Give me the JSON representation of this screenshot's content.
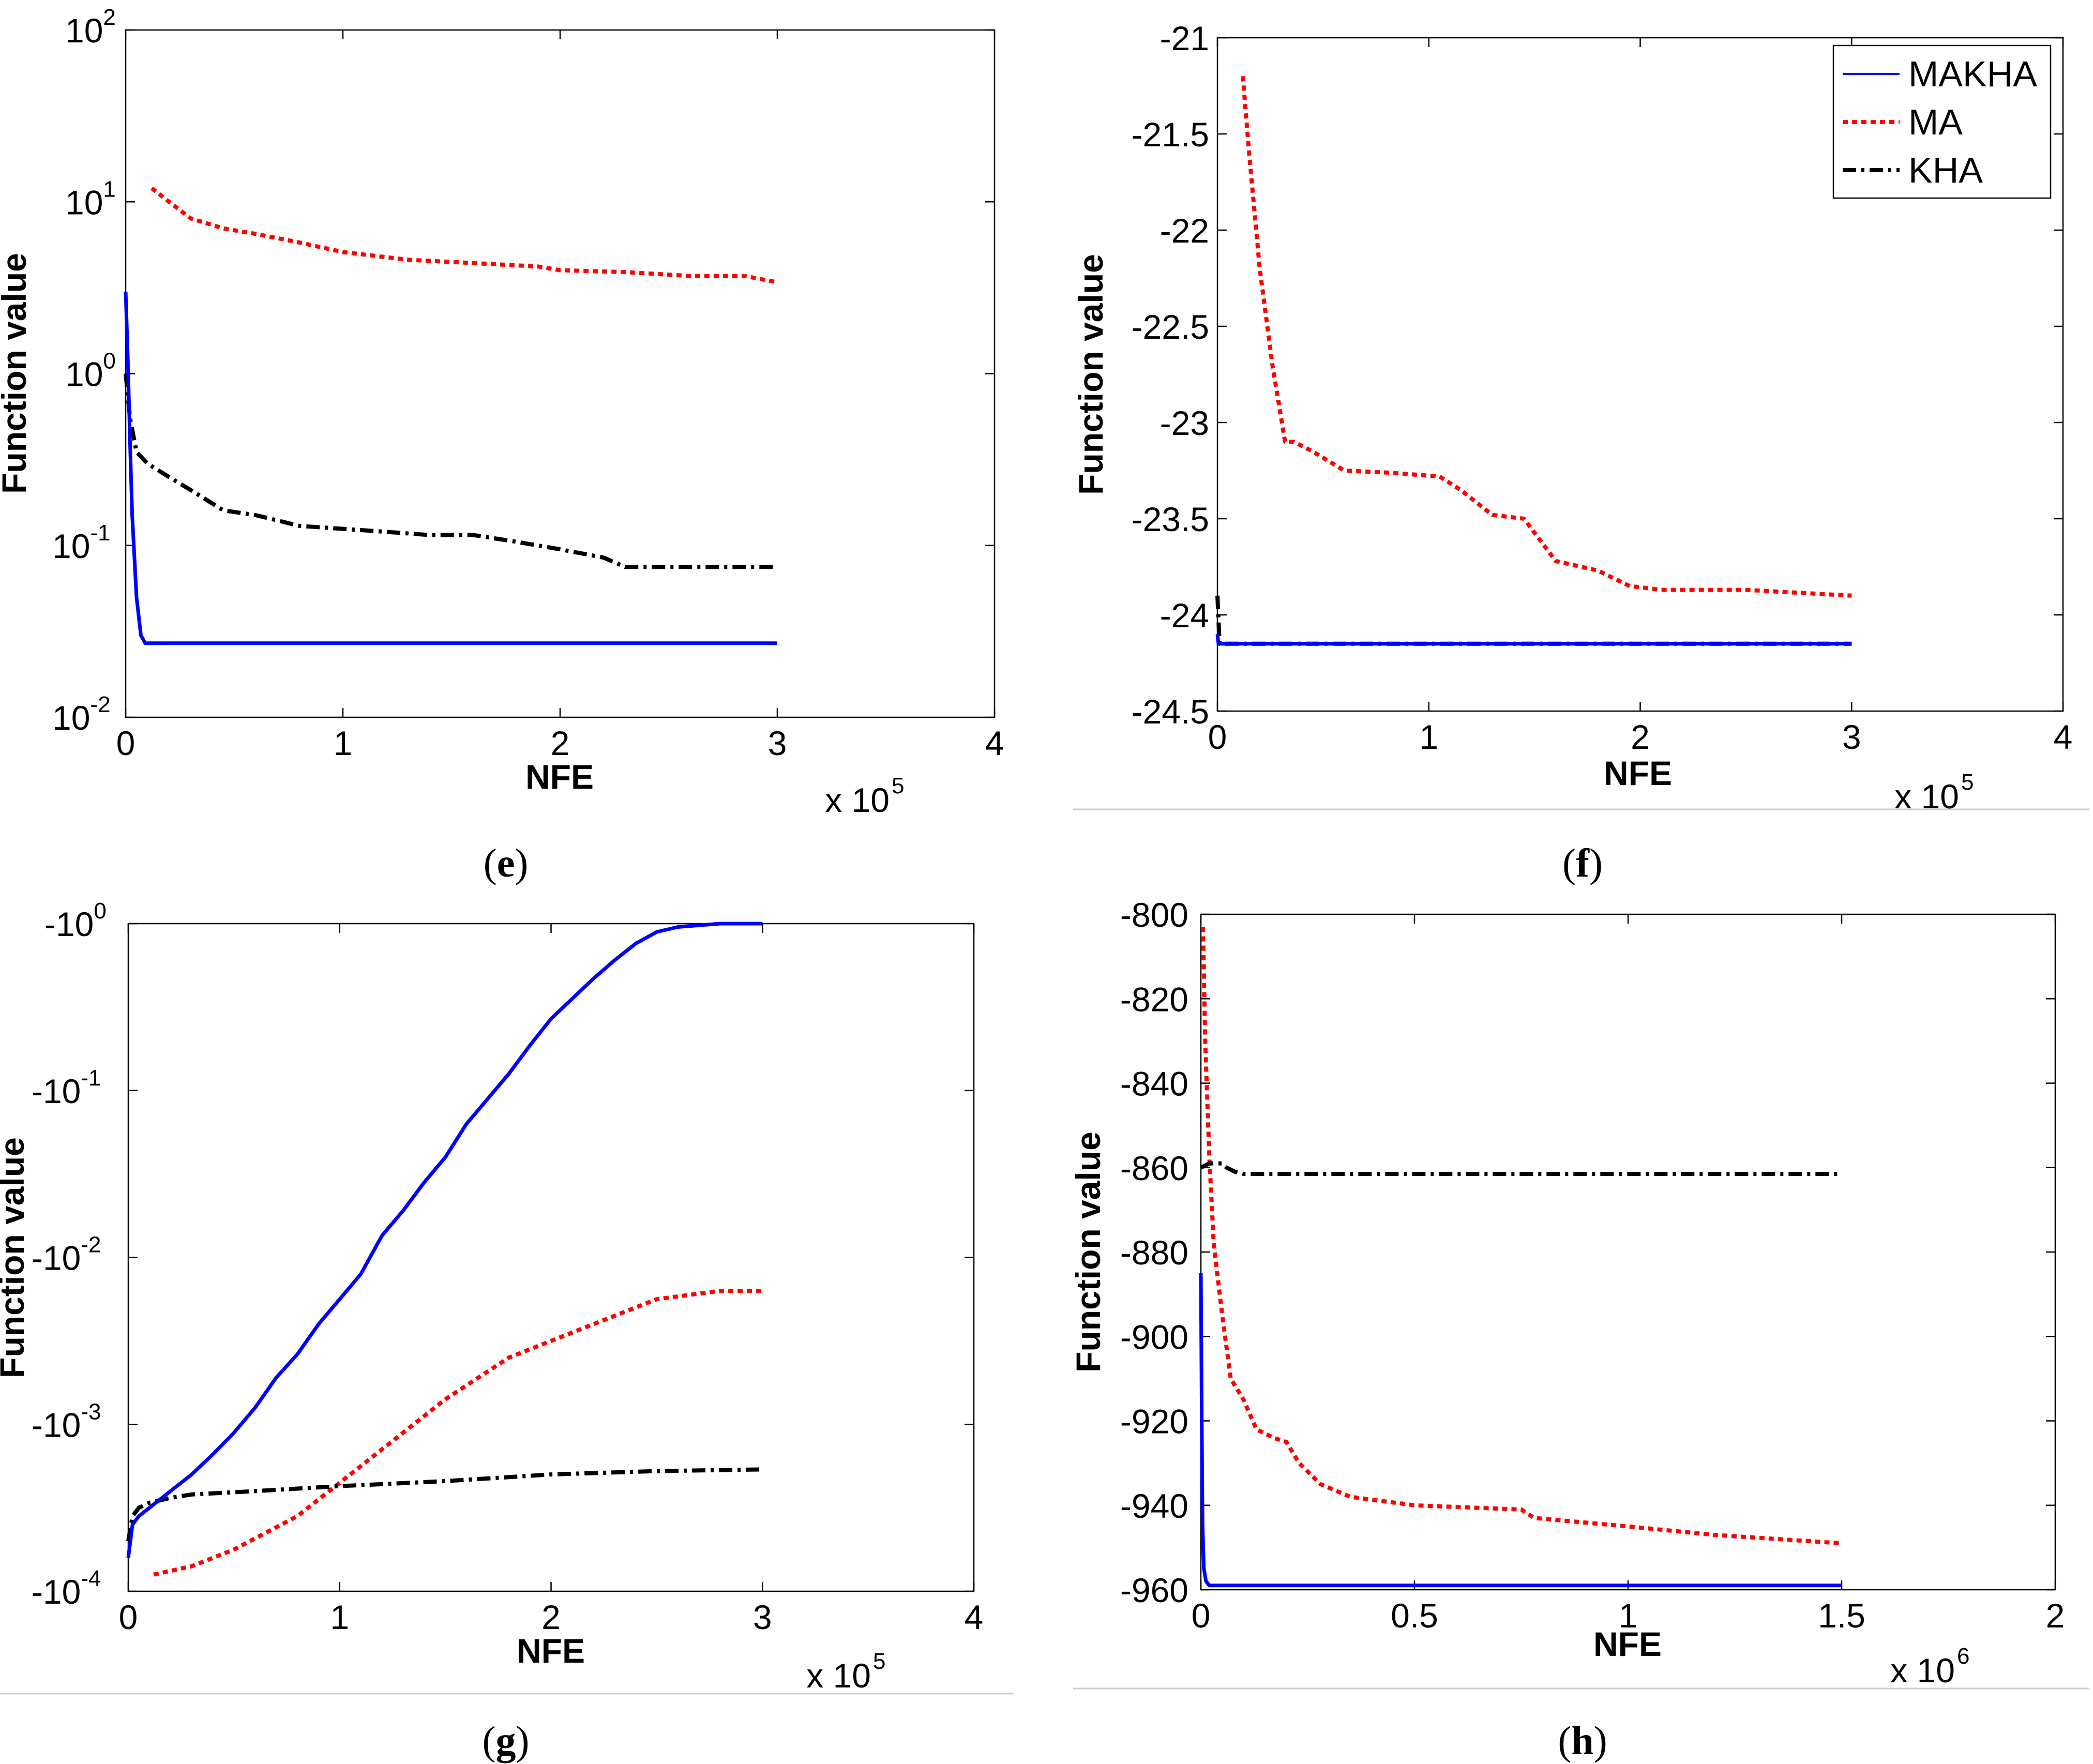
{
  "figure": {
    "series_styles": {
      "MAKHA": {
        "color": "#0000ff",
        "dash": "solid"
      },
      "MA": {
        "color": "#ff0000",
        "dash": "dotted"
      },
      "KHA": {
        "color": "#000000",
        "dash": "dash-dot"
      }
    }
  },
  "chart_data": [
    {
      "panel": "e",
      "panel_label": "(e)",
      "type": "line",
      "xlabel": "NFE",
      "ylabel": "Function value",
      "x_multiplier_text": "x 10",
      "x_multiplier_exp": "5",
      "x_scale": "linear",
      "y_scale": "log",
      "xlim": [
        0,
        4
      ],
      "ylim": [
        0.01,
        100
      ],
      "xticks": [
        0,
        1,
        2,
        3,
        4
      ],
      "xtick_labels": [
        "0",
        "1",
        "2",
        "3",
        "4"
      ],
      "yticks": [
        0.01,
        0.1,
        1,
        10,
        100
      ],
      "ytick_labels": [
        {
          "base": "10",
          "exp": "-2"
        },
        {
          "base": "10",
          "exp": "-1"
        },
        {
          "base": "10",
          "exp": "0"
        },
        {
          "base": "10",
          "exp": "1"
        },
        {
          "base": "10",
          "exp": "2"
        }
      ],
      "legend": [],
      "series": [
        {
          "name": "MA",
          "x": [
            0.12,
            0.2,
            0.3,
            0.45,
            0.6,
            0.8,
            1.0,
            1.3,
            1.6,
            1.9,
            2.0,
            2.3,
            2.6,
            2.85,
            3.0
          ],
          "y": [
            12,
            10,
            8,
            7,
            6.5,
            5.8,
            5.1,
            4.6,
            4.4,
            4.2,
            4.0,
            3.9,
            3.7,
            3.7,
            3.4
          ]
        },
        {
          "name": "KHA",
          "x": [
            0.0,
            0.02,
            0.05,
            0.1,
            0.2,
            0.3,
            0.45,
            0.6,
            0.8,
            1.0,
            1.2,
            1.4,
            1.6,
            1.8,
            2.0,
            2.2,
            2.3,
            2.6,
            3.0
          ],
          "y": [
            1.0,
            0.55,
            0.35,
            0.3,
            0.25,
            0.21,
            0.16,
            0.15,
            0.13,
            0.125,
            0.12,
            0.115,
            0.115,
            0.105,
            0.095,
            0.085,
            0.075,
            0.075,
            0.075
          ]
        },
        {
          "name": "MAKHA",
          "x": [
            0.0,
            0.01,
            0.02,
            0.03,
            0.05,
            0.07,
            0.09,
            0.12,
            0.5,
            1.0,
            2.0,
            3.0
          ],
          "y": [
            3.0,
            1.2,
            0.4,
            0.15,
            0.05,
            0.03,
            0.027,
            0.027,
            0.027,
            0.027,
            0.027,
            0.027
          ]
        }
      ]
    },
    {
      "panel": "f",
      "panel_label": "(f)",
      "type": "line",
      "xlabel": "NFE",
      "ylabel": "Function value",
      "x_multiplier_text": "x 10",
      "x_multiplier_exp": "5",
      "x_scale": "linear",
      "y_scale": "linear",
      "xlim": [
        0,
        4
      ],
      "ylim": [
        -24.5,
        -21
      ],
      "xticks": [
        0,
        1,
        2,
        3,
        4
      ],
      "xtick_labels": [
        "0",
        "1",
        "2",
        "3",
        "4"
      ],
      "yticks": [
        -24.5,
        -24,
        -23.5,
        -23,
        -22.5,
        -22,
        -21.5,
        -21
      ],
      "ytick_labels": [
        "-24.5",
        "-24",
        "-23.5",
        "-23",
        "-22.5",
        "-22",
        "-21.5",
        "-21"
      ],
      "legend": [
        "MAKHA",
        "MA",
        "KHA"
      ],
      "legend_position": "top-right",
      "series": [
        {
          "name": "MA",
          "x": [
            0.12,
            0.15,
            0.2,
            0.26,
            0.32,
            0.36,
            0.45,
            0.6,
            0.8,
            1.05,
            1.15,
            1.3,
            1.45,
            1.6,
            1.8,
            1.95,
            2.1,
            2.5,
            3.0
          ],
          "y": [
            -21.2,
            -21.6,
            -22.2,
            -22.7,
            -23.1,
            -23.1,
            -23.15,
            -23.25,
            -23.26,
            -23.28,
            -23.35,
            -23.48,
            -23.5,
            -23.72,
            -23.77,
            -23.85,
            -23.87,
            -23.87,
            -23.9
          ]
        },
        {
          "name": "KHA",
          "x": [
            0.0,
            0.01,
            3.0
          ],
          "y": [
            -23.9,
            -24.15,
            -24.15
          ]
        },
        {
          "name": "MAKHA",
          "x": [
            0.0,
            0.005,
            3.0
          ],
          "y": [
            -24.1,
            -24.15,
            -24.15
          ]
        }
      ]
    },
    {
      "panel": "g",
      "panel_label": "(g)",
      "type": "line",
      "xlabel": "NFE",
      "ylabel": "Function value",
      "x_multiplier_text": "x 10",
      "x_multiplier_exp": "5",
      "x_scale": "linear",
      "y_scale": "neg-log",
      "xlim": [
        0,
        4
      ],
      "ylim": [
        -4,
        0
      ],
      "xticks": [
        0,
        1,
        2,
        3,
        4
      ],
      "xtick_labels": [
        "0",
        "1",
        "2",
        "3",
        "4"
      ],
      "yticks": [
        -4,
        -3,
        -2,
        -1,
        0
      ],
      "ytick_labels": [
        {
          "base": "-10",
          "exp": "-4"
        },
        {
          "base": "-10",
          "exp": "-3"
        },
        {
          "base": "-10",
          "exp": "-2"
        },
        {
          "base": "-10",
          "exp": "-1"
        },
        {
          "base": "-10",
          "exp": "0"
        }
      ],
      "y_units_note": "values are log10 of the magnitude",
      "series": [
        {
          "name": "MA",
          "x": [
            0.12,
            0.3,
            0.5,
            0.8,
            1.0,
            1.2,
            1.5,
            1.8,
            2.0,
            2.3,
            2.5,
            2.8,
            3.0
          ],
          "y": [
            -3.9,
            -3.85,
            -3.75,
            -3.55,
            -3.35,
            -3.15,
            -2.85,
            -2.6,
            -2.5,
            -2.35,
            -2.25,
            -2.2,
            -2.2
          ]
        },
        {
          "name": "KHA",
          "x": [
            0.0,
            0.02,
            0.05,
            0.1,
            0.2,
            0.3,
            0.6,
            1.0,
            1.5,
            2.0,
            2.5,
            3.0
          ],
          "y": [
            -3.7,
            -3.55,
            -3.5,
            -3.47,
            -3.44,
            -3.42,
            -3.4,
            -3.37,
            -3.34,
            -3.3,
            -3.28,
            -3.27
          ]
        },
        {
          "name": "MAKHA",
          "x": [
            0.0,
            0.02,
            0.05,
            0.1,
            0.2,
            0.3,
            0.4,
            0.5,
            0.6,
            0.7,
            0.8,
            0.9,
            1.0,
            1.1,
            1.2,
            1.3,
            1.4,
            1.5,
            1.6,
            1.7,
            1.8,
            1.9,
            2.0,
            2.1,
            2.2,
            2.3,
            2.4,
            2.5,
            2.6,
            2.8,
            3.0
          ],
          "y": [
            -3.8,
            -3.6,
            -3.55,
            -3.5,
            -3.4,
            -3.3,
            -3.18,
            -3.05,
            -2.9,
            -2.72,
            -2.58,
            -2.4,
            -2.25,
            -2.1,
            -1.87,
            -1.72,
            -1.55,
            -1.4,
            -1.2,
            -1.05,
            -0.9,
            -0.73,
            -0.57,
            -0.45,
            -0.33,
            -0.22,
            -0.12,
            -0.05,
            -0.02,
            0.0,
            0.0
          ]
        }
      ]
    },
    {
      "panel": "h",
      "panel_label": "(h)",
      "type": "line",
      "xlabel": "NFE",
      "ylabel": "Function value",
      "x_multiplier_text": "x 10",
      "x_multiplier_exp": "6",
      "x_scale": "linear",
      "y_scale": "linear",
      "xlim": [
        0,
        2
      ],
      "ylim": [
        -960,
        -800
      ],
      "xticks": [
        0,
        0.5,
        1,
        1.5,
        2
      ],
      "xtick_labels": [
        "0",
        "0.5",
        "1",
        "1.5",
        "2"
      ],
      "yticks": [
        -960,
        -940,
        -920,
        -900,
        -880,
        -860,
        -840,
        -820,
        -800
      ],
      "ytick_labels": [
        "-960",
        "-940",
        "-920",
        "-900",
        "-880",
        "-860",
        "-840",
        "-820",
        "-800"
      ],
      "series": [
        {
          "name": "MA",
          "x": [
            0.005,
            0.01,
            0.02,
            0.03,
            0.05,
            0.07,
            0.1,
            0.13,
            0.17,
            0.2,
            0.23,
            0.28,
            0.35,
            0.5,
            0.75,
            0.78,
            1.0,
            1.2,
            1.5
          ],
          "y": [
            -803,
            -830,
            -858,
            -878,
            -895,
            -910,
            -915,
            -922,
            -924,
            -925,
            -930,
            -935,
            -938,
            -940,
            -941,
            -943,
            -945,
            -947,
            -949
          ]
        },
        {
          "name": "KHA",
          "x": [
            0.0,
            0.02,
            0.05,
            0.06,
            0.08,
            0.1,
            1.5
          ],
          "y": [
            -860,
            -859,
            -859,
            -860,
            -861,
            -861.5,
            -861.5
          ]
        },
        {
          "name": "MAKHA",
          "x": [
            0.0,
            0.002,
            0.004,
            0.007,
            0.012,
            0.02,
            1.5
          ],
          "y": [
            -885,
            -920,
            -945,
            -955,
            -958,
            -959,
            -959
          ]
        }
      ]
    }
  ]
}
